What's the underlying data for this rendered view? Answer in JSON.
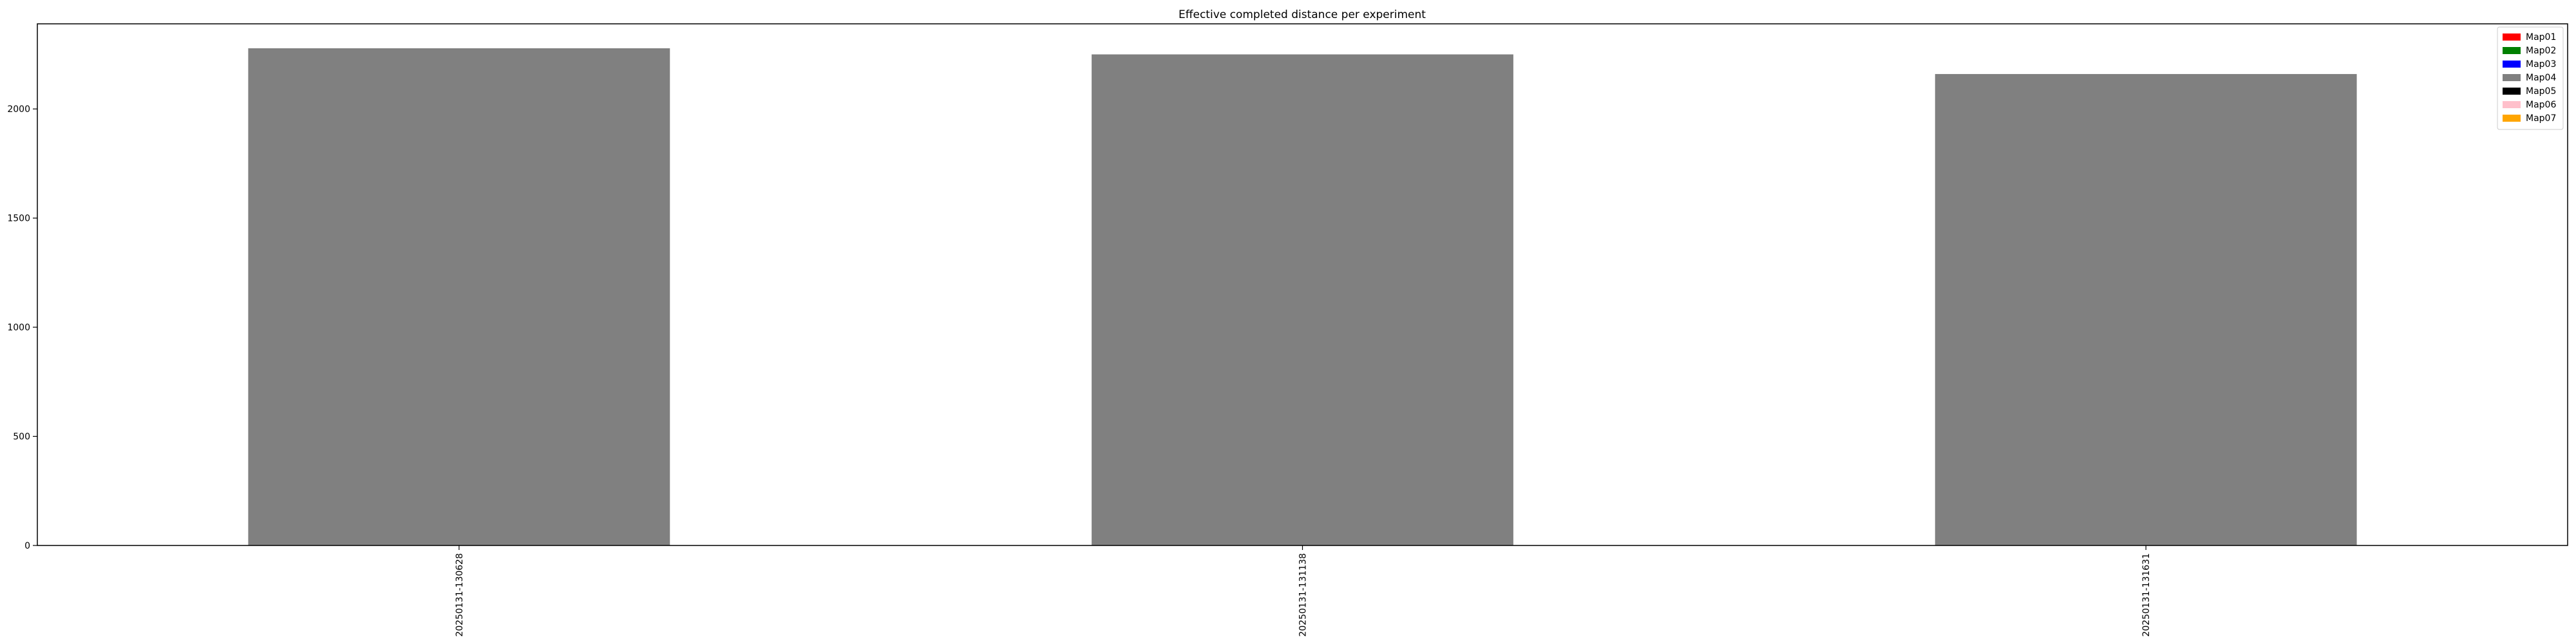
{
  "chart_data": {
    "type": "bar",
    "title": "Effective completed distance per experiment",
    "xlabel": "",
    "ylabel": "",
    "categories": [
      "20250131-130628",
      "20250131-131138",
      "20250131-131631"
    ],
    "series": [
      {
        "name": "Map04",
        "color": "#808080",
        "values": [
          2278,
          2250,
          2160
        ]
      }
    ],
    "ylim": [
      0,
      2390
    ],
    "yticks": [
      0,
      500,
      1000,
      1500,
      2000
    ],
    "grid": false,
    "legend_position": "top-right",
    "legend": [
      {
        "name": "Map01",
        "color": "#ff0000"
      },
      {
        "name": "Map02",
        "color": "#008000"
      },
      {
        "name": "Map03",
        "color": "#0000ff"
      },
      {
        "name": "Map04",
        "color": "#808080"
      },
      {
        "name": "Map05",
        "color": "#000000"
      },
      {
        "name": "Map06",
        "color": "#ffc0cb"
      },
      {
        "name": "Map07",
        "color": "#ffa500"
      }
    ]
  }
}
